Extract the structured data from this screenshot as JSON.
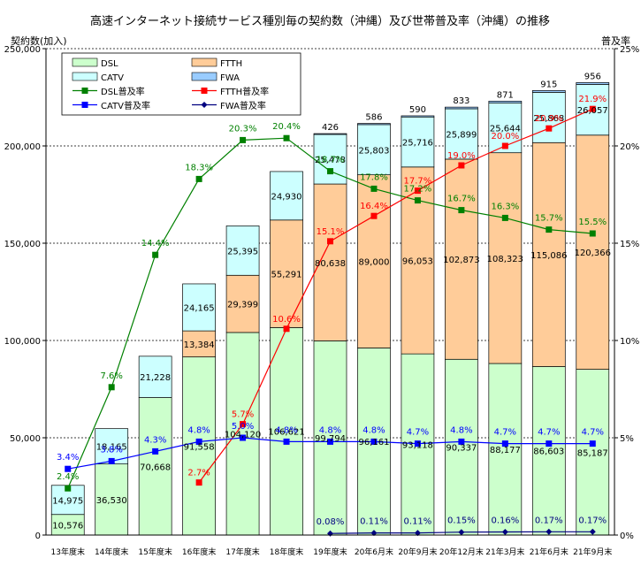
{
  "chart_data": {
    "type": "bar",
    "title": "高速インターネット接続サービス種別毎の契約数（沖縄）及び世帯普及率（沖縄）の推移",
    "ylabel": "契約数(加入)",
    "y2label": "普及率",
    "ylim": [
      0,
      250000
    ],
    "y2lim": [
      0,
      25
    ],
    "yticks": [
      "0",
      "50,000",
      "100,000",
      "150,000",
      "200,000",
      "250,000"
    ],
    "y2ticks": [
      "0%",
      "5%",
      "10%",
      "15%",
      "20%",
      "25%"
    ],
    "grid": true,
    "legend_position": "top-left",
    "categories": [
      "13年度末",
      "14年度末",
      "15年度末",
      "16年度末",
      "17年度末",
      "18年度末",
      "19年度末",
      "20年6月末",
      "20年9月末",
      "20年12月末",
      "21年3月末",
      "21年6月末",
      "21年9月末"
    ],
    "series": [
      {
        "name": "DSL",
        "kind": "bar",
        "color": "#ccffcc",
        "values": [
          10576,
          36530,
          70668,
          91558,
          104120,
          106621,
          99794,
          96161,
          93118,
          90337,
          88177,
          86603,
          85187
        ],
        "labels": [
          "10,576",
          "36,530",
          "70,668",
          "91,558",
          "104,120",
          "106,621",
          "99,794",
          "96,161",
          "93,118",
          "90,337",
          "88,177",
          "86,603",
          "85,187"
        ]
      },
      {
        "name": "FTTH",
        "kind": "bar",
        "color": "#ffcc99",
        "values": [
          0,
          0,
          0,
          13384,
          29399,
          55291,
          80638,
          89000,
          96053,
          102873,
          108323,
          115086,
          120366
        ],
        "labels": [
          "",
          "",
          "",
          "13,384",
          "29,399",
          "55,291",
          "80,638",
          "89,000",
          "96,053",
          "102,873",
          "108,323",
          "115,086",
          "120,366"
        ]
      },
      {
        "name": "CATV",
        "kind": "bar",
        "color": "#ccffff",
        "values": [
          14975,
          18165,
          21228,
          24165,
          25395,
          24930,
          25478,
          25803,
          25716,
          25899,
          25644,
          25868,
          26057
        ],
        "labels": [
          "14,975",
          "18,165",
          "21,228",
          "24,165",
          "25,395",
          "24,930",
          "25,478",
          "25,803",
          "25,716",
          "25,899",
          "25,644",
          "25,868",
          "26,057"
        ]
      },
      {
        "name": "FWA",
        "kind": "bar",
        "color": "#99ccff",
        "values": [
          0,
          0,
          0,
          0,
          0,
          0,
          426,
          586,
          590,
          833,
          871,
          915,
          956
        ],
        "labels": [
          "",
          "",
          "",
          "",
          "",
          "",
          "426",
          "586",
          "590",
          "833",
          "871",
          "915",
          "956"
        ]
      },
      {
        "name": "DSL普及率",
        "kind": "line",
        "color": "#008000",
        "marker": "square",
        "values": [
          2.4,
          7.6,
          14.4,
          18.3,
          20.3,
          20.4,
          18.7,
          17.8,
          17.2,
          16.7,
          16.3,
          15.7,
          15.5
        ],
        "labels": [
          "2.4%",
          "7.6%",
          "14.4%",
          "18.3%",
          "20.3%",
          "20.4%",
          "18.7%",
          "17.8%",
          "17.2%",
          "16.7%",
          "16.3%",
          "15.7%",
          "15.5%"
        ]
      },
      {
        "name": "FTTH普及率",
        "kind": "line",
        "color": "#ff0000",
        "marker": "square",
        "values": [
          null,
          null,
          null,
          2.7,
          5.7,
          10.6,
          15.1,
          16.4,
          17.7,
          19.0,
          20.0,
          20.9,
          21.9
        ],
        "labels": [
          "",
          "",
          "",
          "2.7%",
          "5.7%",
          "10.6%",
          "15.1%",
          "16.4%",
          "17.7%",
          "19.0%",
          "20.0%",
          "20.9%",
          "21.9%"
        ]
      },
      {
        "name": "CATV普及率",
        "kind": "line",
        "color": "#0000ff",
        "marker": "square",
        "values": [
          3.4,
          3.8,
          4.3,
          4.8,
          5.0,
          4.8,
          4.8,
          4.8,
          4.7,
          4.8,
          4.7,
          4.7,
          4.7
        ],
        "labels": [
          "3.4%",
          "3.8%",
          "4.3%",
          "4.8%",
          "5.0%",
          "4.8%",
          "4.8%",
          "4.8%",
          "4.7%",
          "4.8%",
          "4.7%",
          "4.7%",
          "4.7%"
        ]
      },
      {
        "name": "FWA普及率",
        "kind": "line",
        "color": "#000080",
        "marker": "diamond",
        "values": [
          null,
          null,
          null,
          null,
          null,
          null,
          0.08,
          0.11,
          0.11,
          0.15,
          0.16,
          0.17,
          0.17
        ],
        "labels": [
          "",
          "",
          "",
          "",
          "",
          "",
          "0.08%",
          "0.11%",
          "0.11%",
          "0.15%",
          "0.16%",
          "0.17%",
          "0.17%"
        ]
      }
    ]
  }
}
